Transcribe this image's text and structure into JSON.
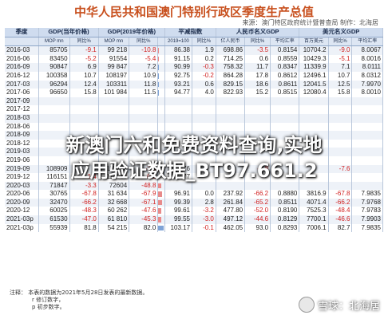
{
  "title": "中华人民共和国澳门特别行政区季度生产总值",
  "source": "来源：澳门特区政府统计暨普查局  制作：北海居",
  "header": {
    "c1": "季度",
    "c2": "GDP(当年价格)",
    "c3": "GDP(2019年价格)",
    "c4": "平减指数",
    "c5": "人民币名义GDP",
    "c6": "美元名义GDP",
    "sub": [
      "",
      "MOP mn",
      "同比%",
      "MOP mn",
      "同比%",
      "",
      "2019=100",
      "同比%",
      "亿人民币",
      "同比%",
      "平均汇率",
      "百万美元",
      "同比%",
      "平均汇率"
    ]
  },
  "rows": [
    {
      "q": "2016-03",
      "gdp": "85705",
      "gdp_yoy": "-9.1",
      "real": "99 218",
      "real_yoy": "-10.8",
      "defl": "86.38",
      "defl_yoy": "1.9",
      "rmb": "698.86",
      "rmb_yoy": "-3.5",
      "rmb_fx": "0.8154",
      "usd": "10704.2",
      "usd_yoy": "-9.0",
      "usd_fx": "8.0067"
    },
    {
      "q": "2016-06",
      "gdp": "83450",
      "gdp_yoy": "-5.2",
      "real": "91554",
      "real_yoy": "-5.4",
      "defl": "91.15",
      "defl_yoy": "0.2",
      "rmb": "714.25",
      "rmb_yoy": "0.6",
      "rmb_fx": "0.8559",
      "usd": "10429.3",
      "usd_yoy": "-5.1",
      "usd_fx": "8.0016"
    },
    {
      "q": "2016-09",
      "gdp": "90847",
      "gdp_yoy": "6.9",
      "real": "99 847",
      "real_yoy": "7.2",
      "defl": "90.99",
      "defl_yoy": "-0.3",
      "rmb": "758.32",
      "rmb_yoy": "11.7",
      "rmb_fx": "0.8347",
      "usd": "11339.9",
      "usd_yoy": "7.1",
      "usd_fx": "8.0111"
    },
    {
      "q": "2016-12",
      "gdp": "100358",
      "gdp_yoy": "10.7",
      "real": "108197",
      "real_yoy": "10.9",
      "defl": "92.75",
      "defl_yoy": "-0.2",
      "rmb": "864.28",
      "rmb_yoy": "17.8",
      "rmb_fx": "0.8612",
      "usd": "12496.1",
      "usd_yoy": "10.7",
      "usd_fx": "8.0312"
    },
    {
      "q": "2017-03",
      "gdp": "96294",
      "gdp_yoy": "12.4",
      "real": "103311",
      "real_yoy": "11.8",
      "defl": "93.21",
      "defl_yoy": "0.6",
      "rmb": "829.15",
      "rmb_yoy": "18.6",
      "rmb_fx": "0.8611",
      "usd": "12041.5",
      "usd_yoy": "12.5",
      "usd_fx": "7.9970"
    },
    {
      "q": "2017-06",
      "gdp": "96650",
      "gdp_yoy": "15.8",
      "real": "101 984",
      "real_yoy": "11.5",
      "defl": "94.77",
      "defl_yoy": "4.0",
      "rmb": "822.93",
      "rmb_yoy": "15.2",
      "rmb_fx": "0.8515",
      "usd": "12080.4",
      "usd_yoy": "15.8",
      "usd_fx": "8.0010"
    },
    {
      "q": "2017-09",
      "gdp": "",
      "gdp_yoy": "",
      "real": "",
      "real_yoy": "",
      "defl": "",
      "defl_yoy": "",
      "rmb": "",
      "rmb_yoy": "",
      "rmb_fx": "",
      "usd": "",
      "usd_yoy": "",
      "usd_fx": ""
    },
    {
      "q": "2017-12",
      "gdp": "",
      "gdp_yoy": "",
      "real": "",
      "real_yoy": "",
      "defl": "",
      "defl_yoy": "",
      "rmb": "",
      "rmb_yoy": "",
      "rmb_fx": "",
      "usd": "",
      "usd_yoy": "",
      "usd_fx": ""
    },
    {
      "q": "2018-03",
      "gdp": "",
      "gdp_yoy": "",
      "real": "",
      "real_yoy": "",
      "defl": "",
      "defl_yoy": "",
      "rmb": "",
      "rmb_yoy": "",
      "rmb_fx": "",
      "usd": "",
      "usd_yoy": "",
      "usd_fx": ""
    },
    {
      "q": "2018-06",
      "gdp": "",
      "gdp_yoy": "",
      "real": "",
      "real_yoy": "",
      "defl": "",
      "defl_yoy": "",
      "rmb": "",
      "rmb_yoy": "",
      "rmb_fx": "",
      "usd": "",
      "usd_yoy": "",
      "usd_fx": ""
    },
    {
      "q": "2018-09",
      "gdp": "",
      "gdp_yoy": "",
      "real": "",
      "real_yoy": "",
      "defl": "",
      "defl_yoy": "",
      "rmb": "",
      "rmb_yoy": "",
      "rmb_fx": "",
      "usd": "",
      "usd_yoy": "",
      "usd_fx": ""
    },
    {
      "q": "2018-12",
      "gdp": "",
      "gdp_yoy": "",
      "real": "",
      "real_yoy": "",
      "defl": "",
      "defl_yoy": "",
      "rmb": "",
      "rmb_yoy": "",
      "rmb_fx": "",
      "usd": "",
      "usd_yoy": "",
      "usd_fx": ""
    },
    {
      "q": "2019-03",
      "gdp": "",
      "gdp_yoy": "",
      "real": "",
      "real_yoy": "",
      "defl": "",
      "defl_yoy": "",
      "rmb": "",
      "rmb_yoy": "",
      "rmb_fx": "",
      "usd": "",
      "usd_yoy": "",
      "usd_fx": ""
    },
    {
      "q": "2019-06",
      "gdp": "",
      "gdp_yoy": "",
      "real": "",
      "real_yoy": "",
      "defl": "",
      "defl_yoy": "",
      "rmb": "",
      "rmb_yoy": "",
      "rmb_fx": "",
      "usd": "",
      "usd_yoy": "",
      "usd_fx": ""
    },
    {
      "q": "2019-09",
      "gdp": "108909",
      "gdp_yoy": "",
      "real": "110275",
      "real_yoy": "-7.6",
      "defl": "98.76",
      "defl_yoy": "",
      "rmb": "",
      "rmb_yoy": "-4.8",
      "rmb_fx": "",
      "usd": "",
      "usd_yoy": "-7.6",
      "usd_fx": ""
    },
    {
      "q": "2019-12",
      "gdp": "116151",
      "gdp_yoy": "-1.4",
      "real": "113016",
      "real_yoy": "-0.5",
      "defl": "102.77",
      "defl_yoy": "",
      "rmb": "",
      "rmb_yoy": "",
      "rmb_fx": "",
      "usd": "",
      "usd_yoy": "",
      "usd_fx": ""
    },
    {
      "q": "2020-03",
      "gdp": "71847",
      "gdp_yoy": "-3.3",
      "real": "72604",
      "real_yoy": "-48.8",
      "defl": "",
      "defl_yoy": "",
      "rmb": "",
      "rmb_yoy": "",
      "rmb_fx": "",
      "usd": "",
      "usd_yoy": "",
      "usd_fx": ""
    },
    {
      "q": "2020-06",
      "gdp": "30765",
      "gdp_yoy": "-67.8",
      "real": "31 634",
      "real_yoy": "-67.9",
      "defl": "96.91",
      "defl_yoy": "0.0",
      "rmb": "237.92",
      "rmb_yoy": "-66.2",
      "rmb_fx": "0.8880",
      "usd": "3816.9",
      "usd_yoy": "-67.8",
      "usd_fx": "7.9835"
    },
    {
      "q": "2020-09",
      "gdp": "32470",
      "gdp_yoy": "-66.2",
      "real": "32 668",
      "real_yoy": "-67.1",
      "defl": "99.39",
      "defl_yoy": "2.8",
      "rmb": "261.84",
      "rmb_yoy": "-65.2",
      "rmb_fx": "0.8511",
      "usd": "4071.4",
      "usd_yoy": "-66.2",
      "usd_fx": "7.9768"
    },
    {
      "q": "2020-12",
      "gdp": "60025",
      "gdp_yoy": "-48.3",
      "real": "60 262",
      "real_yoy": "-47.6",
      "defl": "99.61",
      "defl_yoy": "-3.2",
      "rmb": "477.80",
      "rmb_yoy": "-52.0",
      "rmb_fx": "0.8190",
      "usd": "7525.3",
      "usd_yoy": "-48.4",
      "usd_fx": "7.9783"
    },
    {
      "q": "2021-03p",
      "gdp": "61530",
      "gdp_yoy": "-47.0",
      "real": "61 810",
      "real_yoy": "-45.3",
      "defl": "99.55",
      "defl_yoy": "-3.0",
      "rmb": "497.12",
      "rmb_yoy": "-44.6",
      "rmb_fx": "0.8129",
      "usd": "7700.1",
      "usd_yoy": "-46.6",
      "usd_fx": "7.9903"
    },
    {
      "q": "2021-03p",
      "gdp": "55939",
      "gdp_yoy": "81.8",
      "real": "54 215",
      "real_yoy": "82.0",
      "defl": "103.17",
      "defl_yoy": "-0.1",
      "rmb": "462.05",
      "rmb_yoy": "93.0",
      "rmb_fx": "0.8293",
      "usd": "7006.1",
      "usd_yoy": "82.7",
      "usd_fx": "7.9835"
    }
  ],
  "watermark": {
    "line1": "新澳门六和免费资料查询,实地",
    "line2": "应用验证数据_BT97.661.2"
  },
  "notes": {
    "l1": "注释：   本表的数据为2021年5月28日发表的最新数据。",
    "l2": "r  修订数字，",
    "l3": "p  初步数字。"
  },
  "logo": {
    "text": "雪球：北海居"
  }
}
